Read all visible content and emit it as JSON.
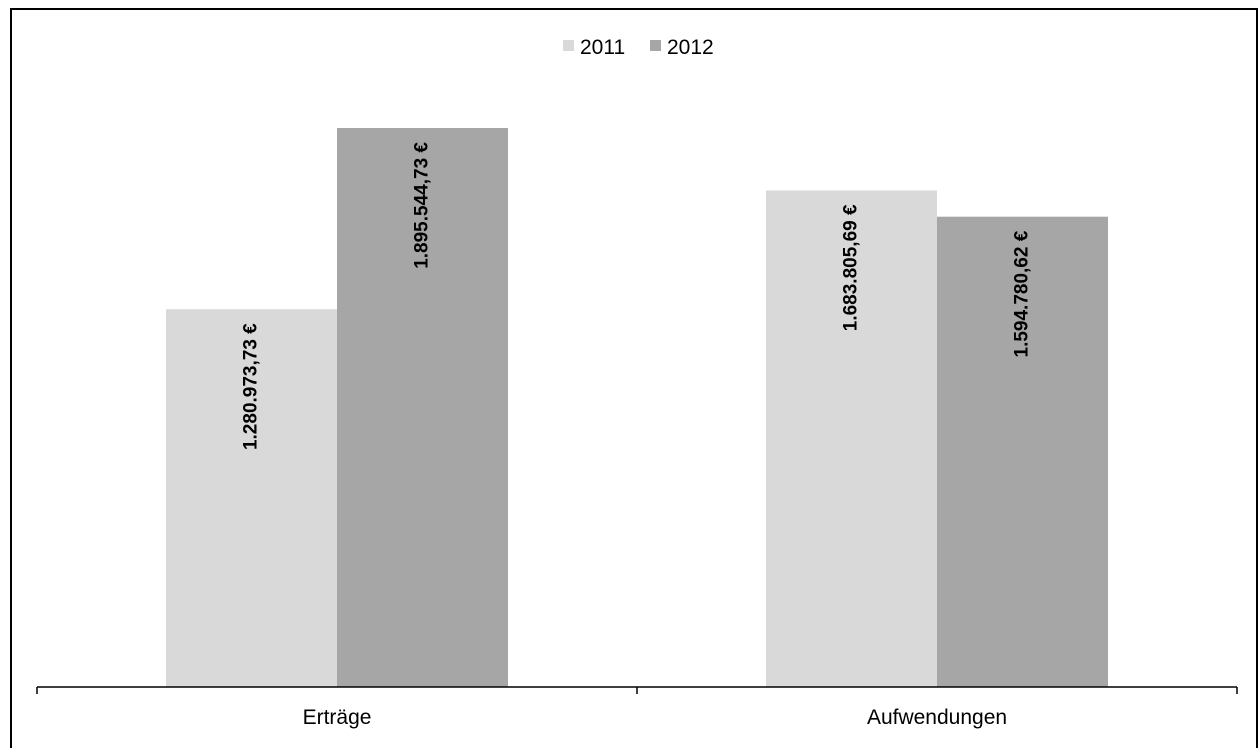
{
  "chart_data": {
    "type": "bar",
    "categories": [
      "Erträge",
      "Aufwendungen"
    ],
    "series": [
      {
        "name": "2011",
        "values": [
          1280973.73,
          1683805.69
        ],
        "labels": [
          "1.280.973,73 €",
          "1.683.805,69 €"
        ],
        "color": "#d9d9d9"
      },
      {
        "name": "2012",
        "values": [
          1895544.73,
          1594780.62
        ],
        "labels": [
          "1.895.544,73 €",
          "1.594.780,62 €"
        ],
        "color": "#a6a6a6"
      }
    ],
    "title": "",
    "xlabel": "",
    "ylabel": "",
    "ylim": [
      0,
      2000000
    ],
    "grid": false,
    "legend_position": "top-center"
  }
}
